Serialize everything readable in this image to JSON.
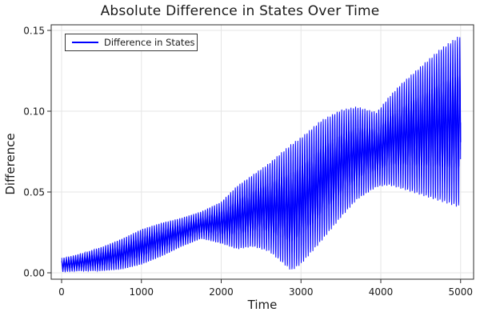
{
  "chart_data": {
    "type": "line",
    "title": "Absolute Difference in States Over Time",
    "xlabel": "Time",
    "ylabel": "Difference",
    "legend_label": "Difference in States",
    "legend_position": "top-left",
    "series_color": "#0000ff",
    "background_color": "#ffffff",
    "grid": true,
    "grid_color": "#e6e6e6",
    "frame_color": "#2b2b2b",
    "tick_label_color": "#1a1a1a",
    "xlim": [
      -130,
      5165
    ],
    "ylim": [
      -0.004,
      0.1535
    ],
    "x_ticks": [
      0,
      1000,
      2000,
      3000,
      4000,
      5000
    ],
    "x_tick_labels": [
      "0",
      "1000",
      "2000",
      "3000",
      "4000",
      "5000"
    ],
    "y_ticks": [
      0,
      0.05,
      0.1,
      0.15
    ],
    "y_tick_labels": [
      "0.00",
      "0.05",
      "0.10",
      "0.15"
    ],
    "series": [
      {
        "name": "Difference in States",
        "pattern": "high-frequency oscillation (period ~29 time units) sweeping between slowly varying lower and upper envelopes, with a dense core band around the envelope midline; lower envelope pinches to ~0 near t=2880; upper envelope has a local plateau ~0.10 near t=3600-3950 then rises to ~0.148",
        "oscillation_period": 29,
        "start_value": 0.008,
        "end_value": 0.093,
        "envelope_keypoints": [
          {
            "t": 0,
            "lower": 0.0005,
            "upper": 0.009
          },
          {
            "t": 250,
            "lower": 0.001,
            "upper": 0.012
          },
          {
            "t": 500,
            "lower": 0.001,
            "upper": 0.016
          },
          {
            "t": 750,
            "lower": 0.002,
            "upper": 0.021
          },
          {
            "t": 1000,
            "lower": 0.005,
            "upper": 0.027
          },
          {
            "t": 1250,
            "lower": 0.01,
            "upper": 0.031
          },
          {
            "t": 1500,
            "lower": 0.016,
            "upper": 0.034
          },
          {
            "t": 1750,
            "lower": 0.021,
            "upper": 0.038
          },
          {
            "t": 2000,
            "lower": 0.018,
            "upper": 0.044
          },
          {
            "t": 2200,
            "lower": 0.0145,
            "upper": 0.054
          },
          {
            "t": 2400,
            "lower": 0.016,
            "upper": 0.061
          },
          {
            "t": 2600,
            "lower": 0.013,
            "upper": 0.068
          },
          {
            "t": 2880,
            "lower": 0.001,
            "upper": 0.08
          },
          {
            "t": 3000,
            "lower": 0.005,
            "upper": 0.084
          },
          {
            "t": 3250,
            "lower": 0.019,
            "upper": 0.0945
          },
          {
            "t": 3500,
            "lower": 0.034,
            "upper": 0.101
          },
          {
            "t": 3700,
            "lower": 0.045,
            "upper": 0.103
          },
          {
            "t": 3950,
            "lower": 0.053,
            "upper": 0.0995
          },
          {
            "t": 4100,
            "lower": 0.054,
            "upper": 0.109
          },
          {
            "t": 4250,
            "lower": 0.052,
            "upper": 0.117
          },
          {
            "t": 4500,
            "lower": 0.048,
            "upper": 0.128
          },
          {
            "t": 4750,
            "lower": 0.044,
            "upper": 0.139
          },
          {
            "t": 5000,
            "lower": 0.04,
            "upper": 0.1475
          }
        ]
      }
    ]
  }
}
